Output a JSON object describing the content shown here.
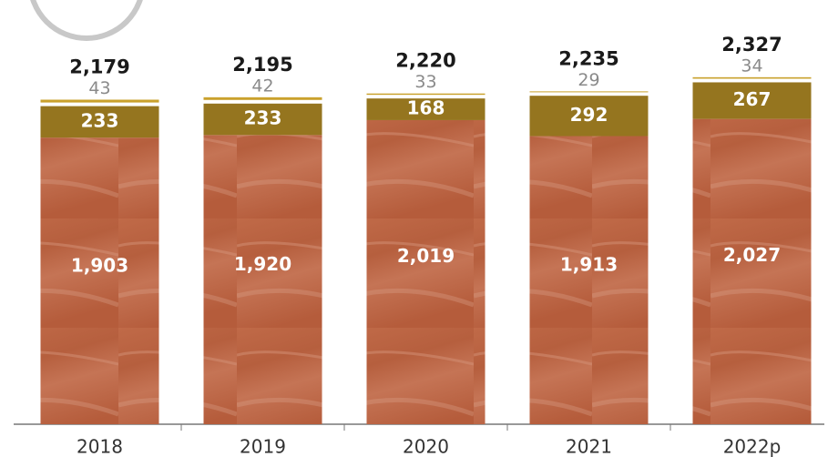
{
  "chart_data": {
    "type": "bar",
    "stacked": true,
    "categories": [
      "2018",
      "2019",
      "2020",
      "2021",
      "2022p"
    ],
    "series": [
      {
        "color": "#b8633f",
        "values": [
          1903,
          1920,
          2019,
          1913,
          2027
        ],
        "value_labels": [
          "1,903",
          "1,920",
          "2,019",
          "1,913",
          "2,027"
        ]
      },
      {
        "color": "#95751f",
        "values": [
          233,
          233,
          168,
          292,
          267
        ]
      },
      {
        "color": "#caa12c",
        "values": [
          43,
          42,
          33,
          29,
          34
        ]
      }
    ],
    "totals": {
      "values": [
        2179,
        2195,
        2220,
        2235,
        2327
      ],
      "value_labels": [
        "2,179",
        "2,195",
        "2,220",
        "2,235",
        "2,327"
      ]
    }
  }
}
